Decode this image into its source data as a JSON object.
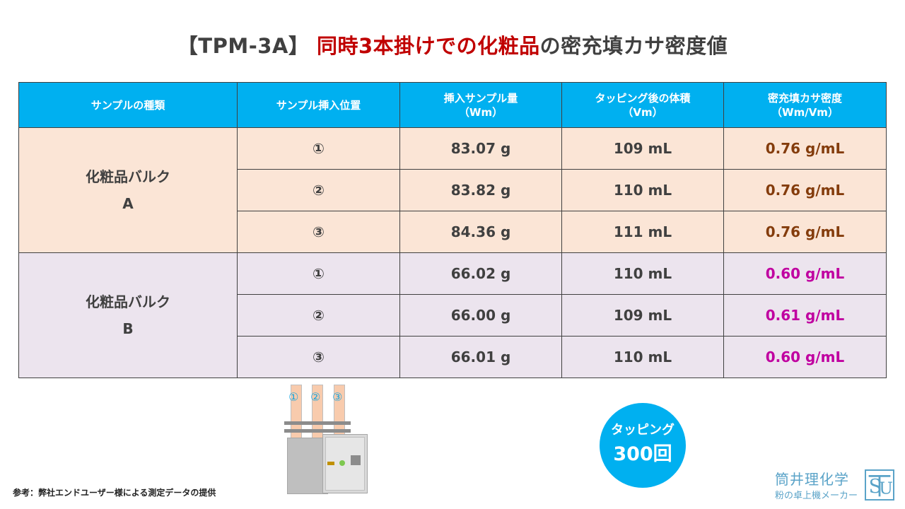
{
  "title": {
    "bracket": "【TPM-3A】",
    "part1": "同時3本掛けでの",
    "part2": "化粧品",
    "part3": "の密充填カサ密度値"
  },
  "table": {
    "headers": [
      {
        "line1": "サンプルの種類",
        "line2": ""
      },
      {
        "line1": "サンプル挿入位置",
        "line2": ""
      },
      {
        "line1": "挿入サンプル量",
        "line2": "（Wm）"
      },
      {
        "line1": "タッピング後の体積",
        "line2": "（Vm）"
      },
      {
        "line1": "密充填カサ密度",
        "line2": "（Wm/Vm）"
      }
    ],
    "groups": [
      {
        "sample_line1": "化粧品バルク",
        "sample_line2": "A",
        "rows": [
          {
            "position": "①",
            "mass": "83.07 g",
            "volume": "109 mL",
            "density": "0.76 g/mL"
          },
          {
            "position": "②",
            "mass": "83.82 g",
            "volume": "110 mL",
            "density": "0.76 g/mL"
          },
          {
            "position": "③",
            "mass": "84.36 g",
            "volume": "111 mL",
            "density": "0.76 g/mL"
          }
        ]
      },
      {
        "sample_line1": "化粧品バルク",
        "sample_line2": "B",
        "rows": [
          {
            "position": "①",
            "mass": "66.02 g",
            "volume": "110 mL",
            "density": "0.60 g/mL"
          },
          {
            "position": "②",
            "mass": "66.00 g",
            "volume": "109 mL",
            "density": "0.61 g/mL"
          },
          {
            "position": "③",
            "mass": "66.01 g",
            "volume": "110 mL",
            "density": "0.60 g/mL"
          }
        ]
      }
    ]
  },
  "device": {
    "tube_labels": [
      "①",
      "②",
      "③"
    ]
  },
  "tapping": {
    "line1": "タッピング",
    "line2": "300回"
  },
  "source_note": "参考：弊社エンドユーザー様による測定データの提供",
  "logo": {
    "name": "筒井理化学",
    "tagline": "粉の卓上機メーカー"
  },
  "colors": {
    "header": "#00b0f0",
    "group_a_bg": "#fbe5d6",
    "group_b_bg": "#ece4ee",
    "density_a": "#843c0c",
    "density_b": "#c000a0",
    "title_highlight": "#c00000"
  }
}
